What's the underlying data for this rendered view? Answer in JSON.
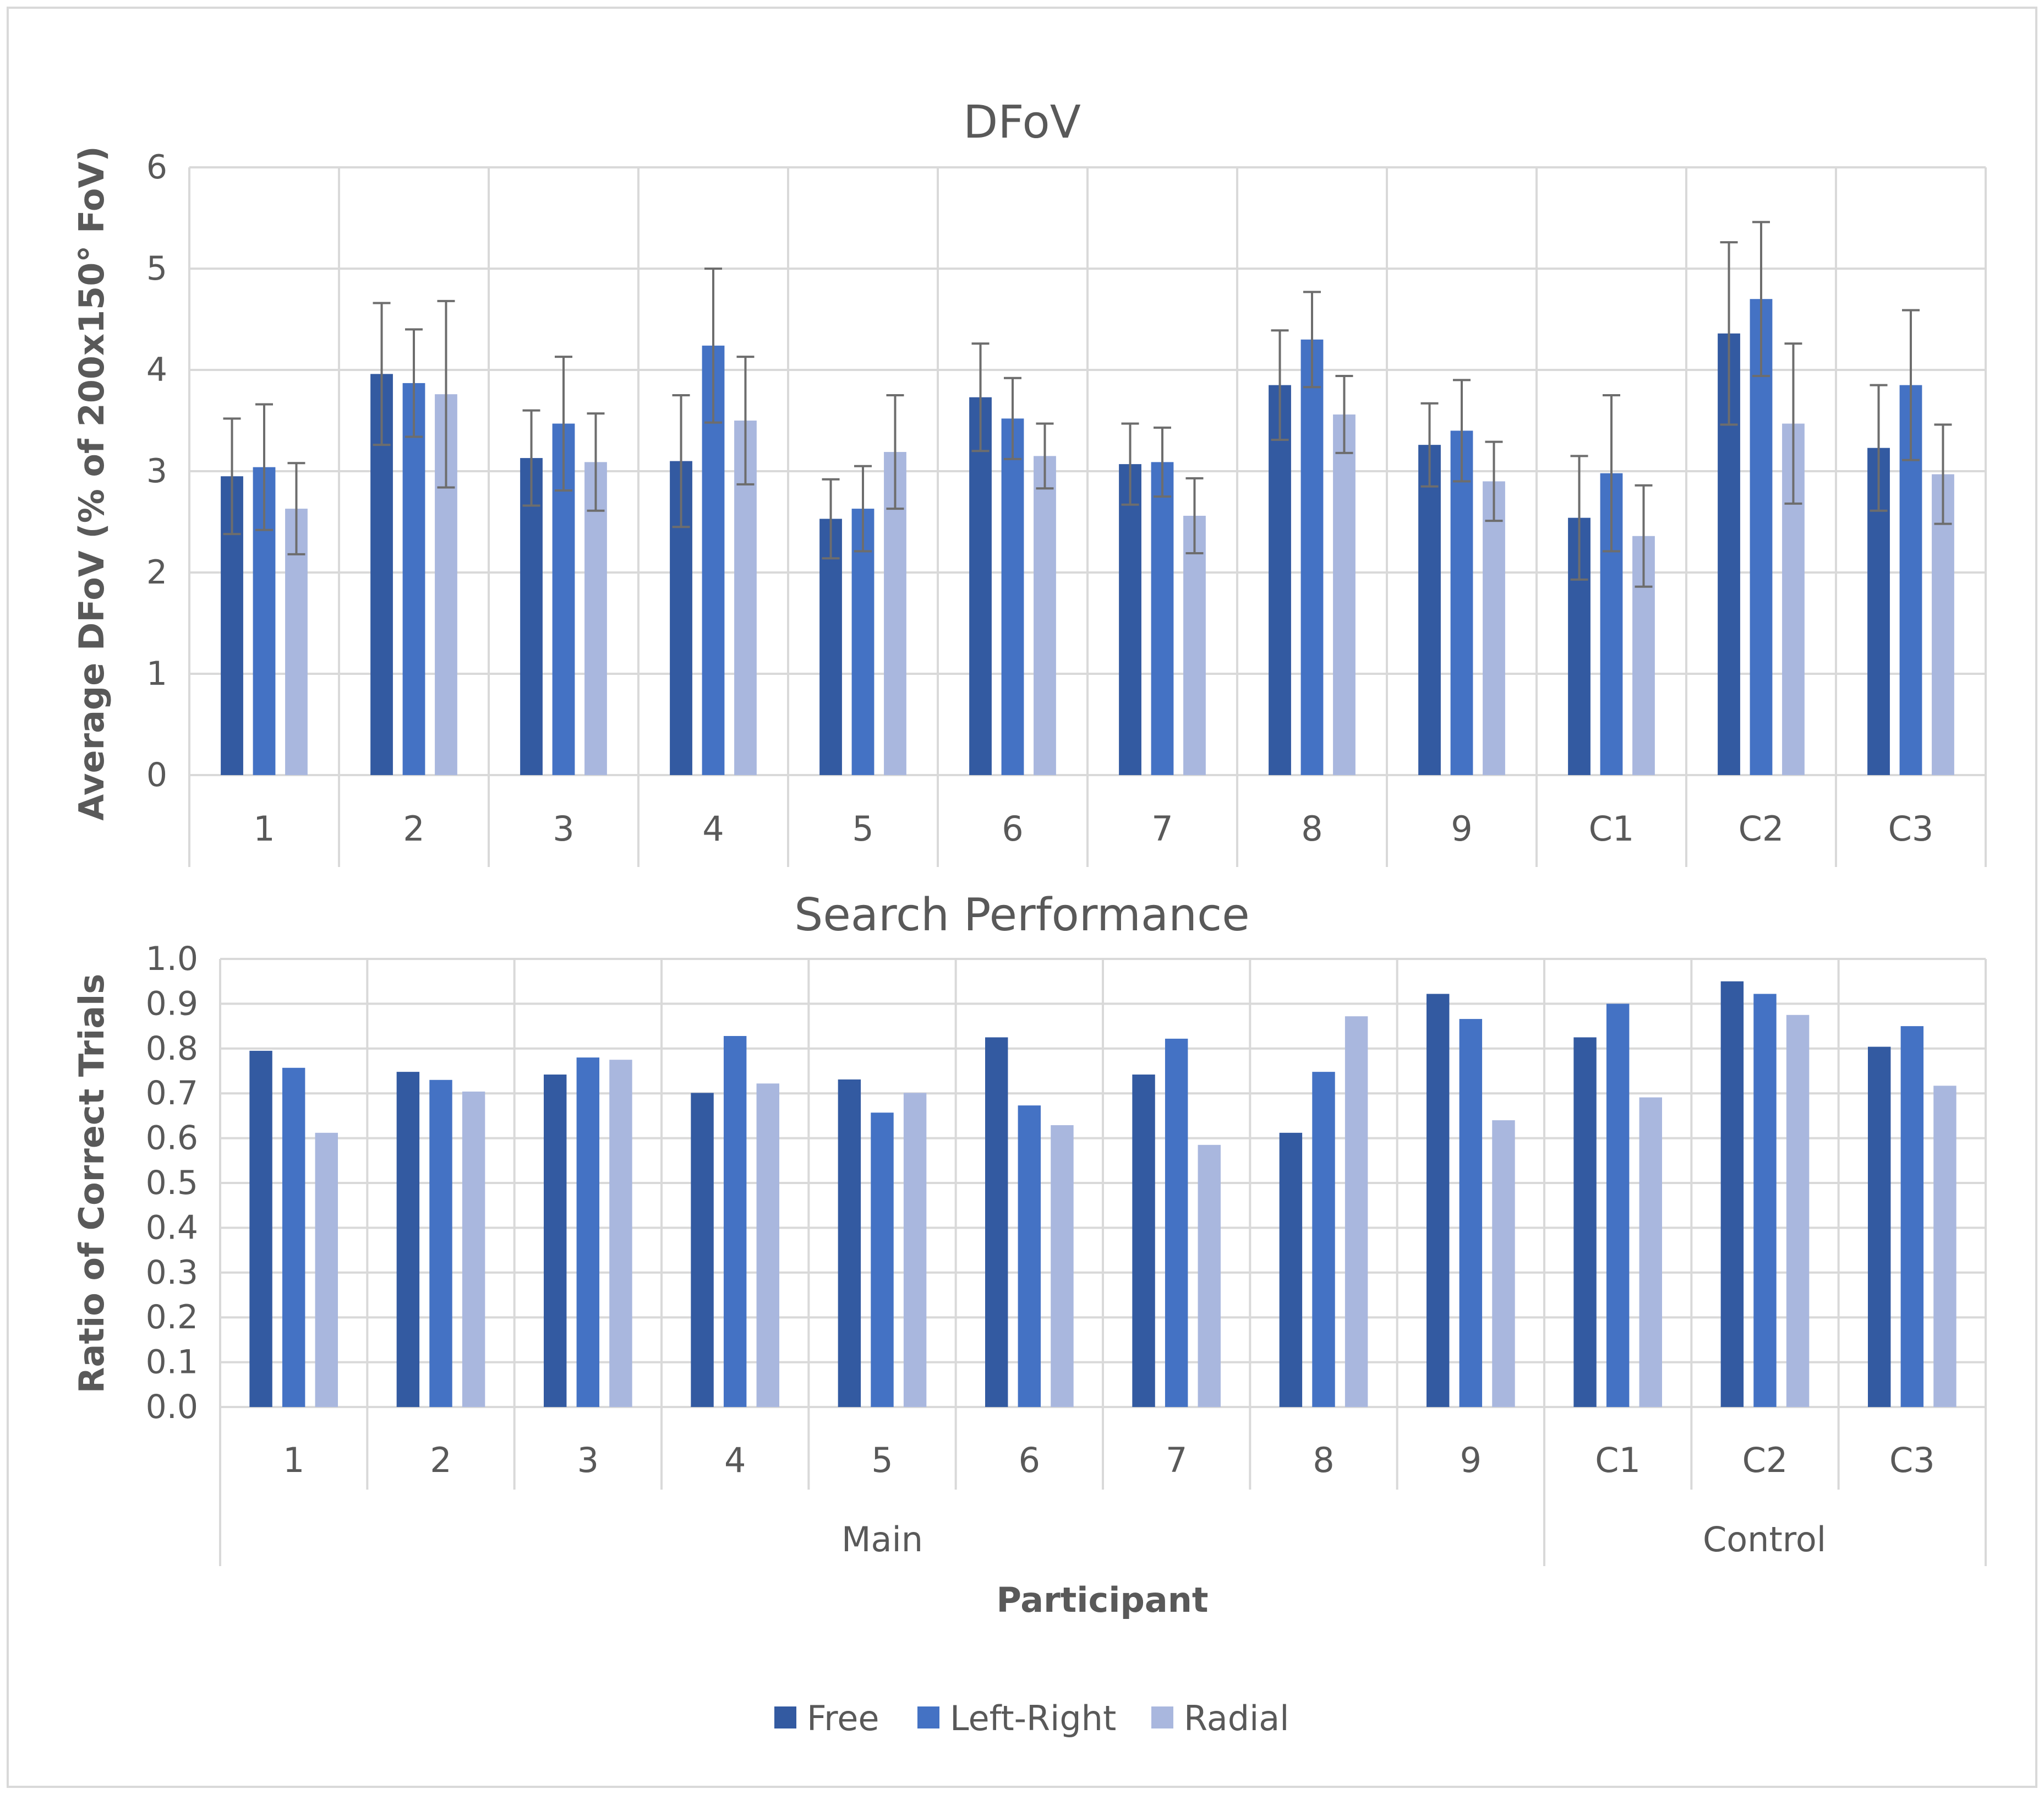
{
  "colors": {
    "free": "#335AA1",
    "left_right": "#4472C4",
    "radial": "#A9B7DE",
    "grid": "#D9D9D9",
    "axis_text": "#595959",
    "error_bar": "#6D6D6D"
  },
  "x_axis": {
    "title": "Participant",
    "group_labels": [
      "Main",
      "Control"
    ]
  },
  "legend": {
    "items": [
      {
        "label": "Free"
      },
      {
        "label": "Left-Right"
      },
      {
        "label": "Radial"
      }
    ]
  },
  "chart_data": [
    {
      "type": "bar",
      "title": "DFoV",
      "ylabel": "Average DFoV (% of 200x150° FoV)",
      "xlabel": "",
      "ylim": [
        0,
        6
      ],
      "yticks": [
        "0",
        "1",
        "2",
        "3",
        "4",
        "5",
        "6"
      ],
      "categories": [
        "1",
        "2",
        "3",
        "4",
        "5",
        "6",
        "7",
        "8",
        "9",
        "C1",
        "C2",
        "C3"
      ],
      "series": [
        {
          "name": "Free",
          "values": [
            2.95,
            3.96,
            3.13,
            3.1,
            2.53,
            3.73,
            3.07,
            3.85,
            3.26,
            2.54,
            4.36,
            3.23
          ],
          "errors": [
            0.57,
            0.7,
            0.47,
            0.65,
            0.39,
            0.53,
            0.4,
            0.54,
            0.41,
            0.61,
            0.9,
            0.62
          ]
        },
        {
          "name": "Left-Right",
          "values": [
            3.04,
            3.87,
            3.47,
            4.24,
            2.63,
            3.52,
            3.09,
            4.3,
            3.4,
            2.98,
            4.7,
            3.85
          ],
          "errors": [
            0.62,
            0.53,
            0.66,
            0.76,
            0.42,
            0.4,
            0.34,
            0.47,
            0.5,
            0.77,
            0.76,
            0.74
          ]
        },
        {
          "name": "Radial",
          "values": [
            2.63,
            3.76,
            3.09,
            3.5,
            3.19,
            3.15,
            2.56,
            3.56,
            2.9,
            2.36,
            3.47,
            2.97
          ],
          "errors": [
            0.45,
            0.92,
            0.48,
            0.63,
            0.56,
            0.32,
            0.37,
            0.38,
            0.39,
            0.5,
            0.79,
            0.49
          ]
        }
      ]
    },
    {
      "type": "bar",
      "title": "Search Performance",
      "ylabel": "Ratio of Correct Trials",
      "xlabel": "Participant",
      "ylim": [
        0,
        1.0
      ],
      "yticks": [
        "0.0",
        "0.1",
        "0.2",
        "0.3",
        "0.4",
        "0.5",
        "0.6",
        "0.7",
        "0.8",
        "0.9",
        "1.0"
      ],
      "categories": [
        "1",
        "2",
        "3",
        "4",
        "5",
        "6",
        "7",
        "8",
        "9",
        "C1",
        "C2",
        "C3"
      ],
      "category_groups": [
        {
          "name": "Main",
          "members": [
            "1",
            "2",
            "3",
            "4",
            "5",
            "6",
            "7",
            "8",
            "9"
          ]
        },
        {
          "name": "Control",
          "members": [
            "C1",
            "C2",
            "C3"
          ]
        }
      ],
      "series": [
        {
          "name": "Free",
          "values": [
            0.795,
            0.748,
            0.742,
            0.701,
            0.731,
            0.825,
            0.742,
            0.612,
            0.922,
            0.825,
            0.95,
            0.804
          ]
        },
        {
          "name": "Left-Right",
          "values": [
            0.757,
            0.73,
            0.78,
            0.828,
            0.657,
            0.673,
            0.822,
            0.748,
            0.866,
            0.9,
            0.922,
            0.85
          ]
        },
        {
          "name": "Radial",
          "values": [
            0.612,
            0.704,
            0.775,
            0.722,
            0.701,
            0.629,
            0.585,
            0.872,
            0.64,
            0.691,
            0.875,
            0.717
          ]
        }
      ]
    }
  ]
}
